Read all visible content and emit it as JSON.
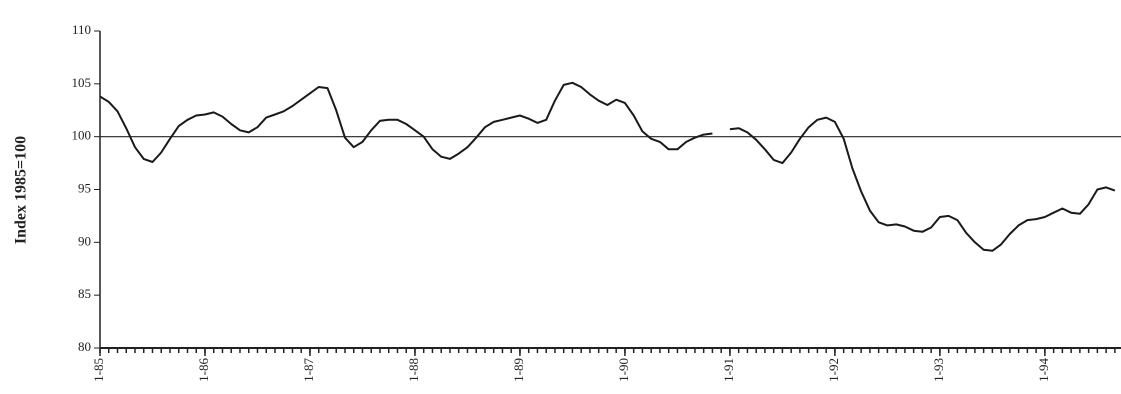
{
  "chart_data": {
    "type": "line",
    "ylabel": "Index 1985=100",
    "x": [
      0,
      1,
      2,
      3,
      4,
      5,
      6,
      7,
      8,
      9,
      10,
      11,
      12,
      13,
      14,
      15,
      16,
      17,
      18,
      19,
      20,
      21,
      22,
      23,
      24,
      25,
      26,
      27,
      28,
      29,
      30,
      31,
      32,
      33,
      34,
      35,
      36,
      37,
      38,
      39,
      40,
      41,
      42,
      43,
      44,
      45,
      46,
      47,
      48,
      49,
      50,
      51,
      52,
      53,
      54,
      55,
      56,
      57,
      58,
      59,
      60,
      61,
      62,
      63,
      64,
      65,
      66,
      67,
      68,
      69,
      70,
      71,
      72,
      73,
      74,
      75,
      76,
      77,
      78,
      79,
      80,
      81,
      82,
      83,
      84,
      85,
      86,
      87,
      88,
      89,
      90,
      91,
      92,
      93,
      94,
      95,
      96,
      97,
      98,
      99,
      100,
      101,
      102,
      103,
      104,
      105,
      106,
      107,
      108,
      109,
      110,
      111,
      112,
      113,
      114,
      115,
      116
    ],
    "series": [
      {
        "name": "Index",
        "color": "#1a1a1a",
        "values": [
          103.8,
          103.3,
          102.4,
          100.8,
          99,
          97.9,
          97.6,
          98.5,
          99.8,
          101,
          101.6,
          102,
          102.1,
          102.3,
          101.9,
          101.2,
          100.6,
          100.4,
          100.9,
          101.8,
          102.1,
          102.4,
          102.9,
          103.5,
          104.1,
          104.7,
          104.6,
          102.5,
          99.9,
          99,
          99.5,
          100.6,
          101.5,
          101.6,
          101.6,
          101.2,
          100.6,
          100,
          98.8,
          98.1,
          97.9,
          98.4,
          99,
          99.9,
          100.9,
          101.4,
          101.6,
          101.8,
          102,
          101.7,
          101.3,
          101.6,
          103.4,
          104.9,
          105.1,
          104.7,
          104,
          103.4,
          103,
          103.5,
          103.2,
          102,
          100.5,
          99.8,
          99.5,
          98.8,
          98.8,
          99.5,
          99.9,
          100.2,
          100.3,
          null,
          100.7,
          100.8,
          100.4,
          99.7,
          98.8,
          97.8,
          97.5,
          98.5,
          99.8,
          100.9,
          101.6,
          101.8,
          101.4,
          99.8,
          97,
          94.8,
          93,
          91.9,
          91.6,
          91.7,
          91.5,
          91.1,
          91,
          91.4,
          92.4,
          92.5,
          92.1,
          90.9,
          90,
          89.3,
          89.2,
          89.8,
          90.8,
          91.6,
          92.1,
          92.2,
          92.4,
          92.8,
          93.2,
          92.8,
          92.7,
          93.6,
          95,
          95.2,
          94.9
        ]
      }
    ],
    "reference_line": 100,
    "xlim": [
      0,
      116.7
    ],
    "xticks": [
      {
        "value": 0,
        "label": "1-85"
      },
      {
        "value": 12,
        "label": "1-86"
      },
      {
        "value": 24,
        "label": "1-87"
      },
      {
        "value": 36,
        "label": "1-88"
      },
      {
        "value": 48,
        "label": "1-89"
      },
      {
        "value": 60,
        "label": "1-90"
      },
      {
        "value": 72,
        "label": "1-91"
      },
      {
        "value": 84,
        "label": "1-92"
      },
      {
        "value": 96,
        "label": "1-93"
      },
      {
        "value": 108,
        "label": "1-94"
      }
    ],
    "ylim": [
      80,
      110
    ],
    "yticks": [
      80,
      85,
      90,
      95,
      100,
      105,
      110
    ],
    "grid": false
  }
}
